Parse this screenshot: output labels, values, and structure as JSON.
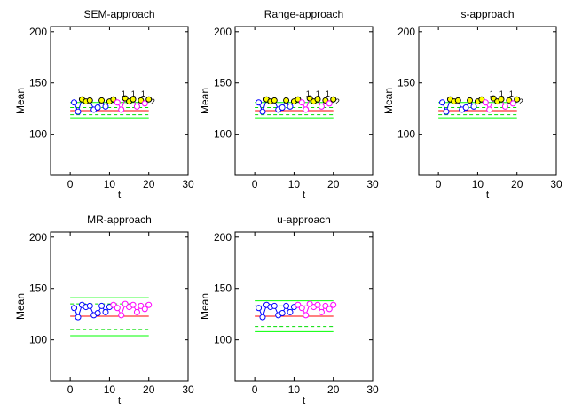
{
  "colors": {
    "center": "#ff0000",
    "limit": "#00ff00",
    "warning": "#00dd00",
    "phase1": "#0000ff",
    "phase2": "#ff00ff",
    "outlier": "#ffff00",
    "marker_edge": "#000000"
  },
  "chart_data": [
    {
      "type": "line",
      "title": "SEM-approach",
      "xlabel": "t",
      "ylabel": "Mean",
      "xlim": [
        -5,
        30
      ],
      "ylim": [
        60,
        205
      ],
      "xticks": [
        "0",
        "10",
        "20",
        "30"
      ],
      "yticks": [
        "100",
        "150",
        "200"
      ],
      "center_line": {
        "y": 123,
        "x": [
          0,
          20
        ]
      },
      "control_limits": [
        {
          "y": 131,
          "x": [
            0,
            20
          ],
          "style": "solid"
        },
        {
          "y": 126,
          "x": [
            0,
            20
          ],
          "style": "dashed"
        },
        {
          "y": 119,
          "x": [
            0,
            20
          ],
          "style": "dashed"
        },
        {
          "y": 116,
          "x": [
            0,
            20
          ],
          "style": "solid"
        }
      ],
      "series": [
        {
          "x": [
            1,
            2,
            3,
            4,
            5,
            6,
            7,
            8,
            9,
            10
          ],
          "values": [
            131,
            122,
            134,
            132,
            133,
            124,
            126,
            133,
            127,
            132
          ]
        },
        {
          "x": [
            11,
            12,
            13,
            14,
            15,
            16,
            17,
            18,
            19,
            20
          ],
          "values": [
            134,
            131,
            124,
            135,
            132,
            134,
            127,
            133,
            130,
            134
          ]
        }
      ],
      "annotations": [
        "1",
        "1",
        "1",
        "2"
      ]
    },
    {
      "type": "line",
      "title": "Range-approach",
      "xlabel": "t",
      "ylabel": "Mean",
      "xlim": [
        -5,
        30
      ],
      "ylim": [
        60,
        205
      ],
      "xticks": [
        "0",
        "10",
        "20",
        "30"
      ],
      "yticks": [
        "100",
        "150",
        "200"
      ],
      "center_line": {
        "y": 123,
        "x": [
          0,
          20
        ]
      },
      "control_limits": [
        {
          "y": 131,
          "x": [
            0,
            20
          ],
          "style": "solid"
        },
        {
          "y": 126,
          "x": [
            0,
            20
          ],
          "style": "dashed"
        },
        {
          "y": 119,
          "x": [
            0,
            20
          ],
          "style": "dashed"
        },
        {
          "y": 116,
          "x": [
            0,
            20
          ],
          "style": "solid"
        }
      ],
      "series": [
        {
          "x": [
            1,
            2,
            3,
            4,
            5,
            6,
            7,
            8,
            9,
            10
          ],
          "values": [
            131,
            122,
            134,
            132,
            133,
            124,
            126,
            133,
            127,
            132
          ]
        },
        {
          "x": [
            11,
            12,
            13,
            14,
            15,
            16,
            17,
            18,
            19,
            20
          ],
          "values": [
            134,
            131,
            124,
            135,
            132,
            134,
            127,
            133,
            130,
            134
          ]
        }
      ],
      "annotations": [
        "1",
        "1",
        "1",
        "2"
      ]
    },
    {
      "type": "line",
      "title": "s-approach",
      "xlabel": "t",
      "ylabel": "Mean",
      "xlim": [
        -5,
        30
      ],
      "ylim": [
        60,
        205
      ],
      "xticks": [
        "0",
        "10",
        "20",
        "30"
      ],
      "yticks": [
        "100",
        "150",
        "200"
      ],
      "center_line": {
        "y": 123,
        "x": [
          0,
          20
        ]
      },
      "control_limits": [
        {
          "y": 131,
          "x": [
            0,
            20
          ],
          "style": "solid"
        },
        {
          "y": 126,
          "x": [
            0,
            20
          ],
          "style": "dashed"
        },
        {
          "y": 119,
          "x": [
            0,
            20
          ],
          "style": "dashed"
        },
        {
          "y": 116,
          "x": [
            0,
            20
          ],
          "style": "solid"
        }
      ],
      "series": [
        {
          "x": [
            1,
            2,
            3,
            4,
            5,
            6,
            7,
            8,
            9,
            10
          ],
          "values": [
            131,
            122,
            134,
            132,
            133,
            124,
            126,
            133,
            127,
            132
          ]
        },
        {
          "x": [
            11,
            12,
            13,
            14,
            15,
            16,
            17,
            18,
            19,
            20
          ],
          "values": [
            134,
            131,
            124,
            135,
            132,
            134,
            127,
            133,
            130,
            134
          ]
        }
      ],
      "annotations": [
        "1",
        "1",
        "1",
        "2"
      ]
    },
    {
      "type": "line",
      "title": "MR-approach",
      "xlabel": "t",
      "ylabel": "Mean",
      "xlim": [
        -5,
        30
      ],
      "ylim": [
        60,
        205
      ],
      "xticks": [
        "0",
        "10",
        "20",
        "30"
      ],
      "yticks": [
        "100",
        "150",
        "200"
      ],
      "center_line": {
        "y": 123,
        "x": [
          0,
          20
        ]
      },
      "control_limits": [
        {
          "y": 141,
          "x": [
            0,
            20
          ],
          "style": "solid"
        },
        {
          "y": 135,
          "x": [
            0,
            20
          ],
          "style": "dashed"
        },
        {
          "y": 110,
          "x": [
            0,
            20
          ],
          "style": "dashed"
        },
        {
          "y": 104,
          "x": [
            0,
            20
          ],
          "style": "solid"
        }
      ],
      "series": [
        {
          "x": [
            1,
            2,
            3,
            4,
            5,
            6,
            7,
            8,
            9,
            10
          ],
          "values": [
            131,
            122,
            134,
            132,
            133,
            124,
            126,
            133,
            127,
            132
          ]
        },
        {
          "x": [
            11,
            12,
            13,
            14,
            15,
            16,
            17,
            18,
            19,
            20
          ],
          "values": [
            134,
            131,
            124,
            135,
            132,
            134,
            127,
            133,
            130,
            134
          ]
        }
      ],
      "annotations": []
    },
    {
      "type": "line",
      "title": "u-approach",
      "xlabel": "t",
      "ylabel": "Mean",
      "xlim": [
        -5,
        30
      ],
      "ylim": [
        60,
        205
      ],
      "xticks": [
        "0",
        "10",
        "20",
        "30"
      ],
      "yticks": [
        "100",
        "150",
        "200"
      ],
      "center_line": {
        "y": 123,
        "x": [
          0,
          20
        ]
      },
      "control_limits": [
        {
          "y": 138,
          "x": [
            0,
            20
          ],
          "style": "solid"
        },
        {
          "y": 133,
          "x": [
            0,
            20
          ],
          "style": "dashed"
        },
        {
          "y": 113,
          "x": [
            0,
            20
          ],
          "style": "dashed"
        },
        {
          "y": 108,
          "x": [
            0,
            20
          ],
          "style": "solid"
        }
      ],
      "series": [
        {
          "x": [
            1,
            2,
            3,
            4,
            5,
            6,
            7,
            8,
            9,
            10
          ],
          "values": [
            131,
            122,
            134,
            132,
            133,
            124,
            126,
            133,
            127,
            132
          ]
        },
        {
          "x": [
            11,
            12,
            13,
            14,
            15,
            16,
            17,
            18,
            19,
            20
          ],
          "values": [
            134,
            131,
            124,
            135,
            132,
            134,
            127,
            133,
            130,
            134
          ]
        }
      ],
      "annotations": []
    }
  ]
}
